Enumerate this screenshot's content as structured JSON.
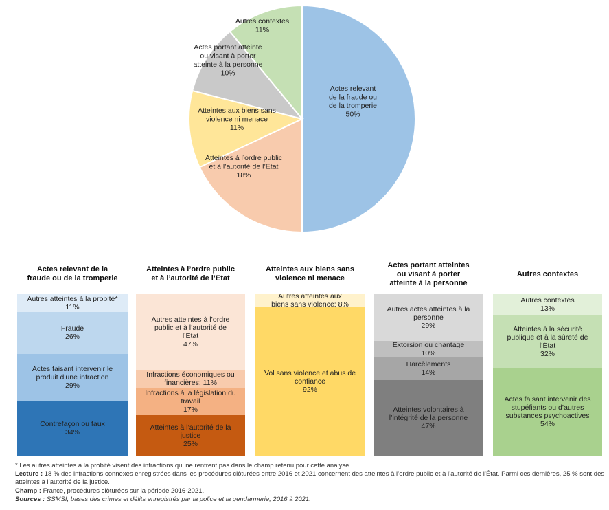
{
  "chart_data": [
    {
      "type": "pie",
      "title": "",
      "slices": [
        {
          "label": "Actes relevant de la fraude ou de la tromperie",
          "lines": [
            "Actes relevant",
            "de la fraude ou",
            "de la tromperie",
            "50%"
          ],
          "value": 50,
          "color": "#9dc3e6"
        },
        {
          "label": "Atteintes à l’ordre public et à l’autorité de l’Etat",
          "lines": [
            "Atteintes à l’ordre public",
            "et à l’autorité de l’Etat",
            "18%"
          ],
          "value": 18,
          "color": "#f8cbad"
        },
        {
          "label": "Atteintes aux biens sans violence ni menace",
          "lines": [
            "Atteintes aux biens sans",
            "violence ni menace",
            "11%"
          ],
          "value": 11,
          "color": "#ffe699"
        },
        {
          "label": "Actes portant atteinte ou visant à porter atteinte à la personne",
          "lines": [
            "Actes portant atteinte",
            "ou visant à porter",
            "atteinte à la personne",
            "10%"
          ],
          "value": 10,
          "color": "#c9c9c9"
        },
        {
          "label": "Autres contextes",
          "lines": [
            "Autres contextes",
            "11%"
          ],
          "value": 11,
          "color": "#c5e0b4"
        }
      ],
      "start": "12 o'clock",
      "direction": "clockwise"
    },
    {
      "type": "bar",
      "stacked": true,
      "normalized": "100%",
      "columns": [
        {
          "title": [
            "Actes relevant de la",
            "fraude ou de la tromperie"
          ],
          "segments": [
            {
              "lines": [
                "Autres atteintes à la probité*",
                "11%"
              ],
              "value": 11,
              "color": "#deebf7"
            },
            {
              "lines": [
                "Fraude",
                "26%"
              ],
              "value": 26,
              "color": "#bdd7ee"
            },
            {
              "lines": [
                "Actes faisant intervenir le",
                "produit d'une infraction",
                "29%"
              ],
              "value": 29,
              "color": "#9dc3e6"
            },
            {
              "lines": [
                "Contrefaçon ou faux",
                "34%"
              ],
              "value": 34,
              "color": "#2e75b6"
            }
          ]
        },
        {
          "title": [
            "Atteintes à l’ordre public",
            "et à l’autorité de l’Etat"
          ],
          "segments": [
            {
              "lines": [
                "Autres atteintes à l’ordre",
                "public et à l’autorité de",
                "l’Etat",
                "47%"
              ],
              "value": 47,
              "color": "#fbe5d6"
            },
            {
              "lines": [
                "Infractions économiques ou",
                "financières; 11%"
              ],
              "value": 11,
              "color": "#f8cbad"
            },
            {
              "lines": [
                "Infractions à la législation du",
                "travail",
                "17%"
              ],
              "value": 17,
              "color": "#f4b183"
            },
            {
              "lines": [
                "Atteintes à l’autorité de la",
                "justice",
                "25%"
              ],
              "value": 25,
              "color": "#c55a11"
            }
          ]
        },
        {
          "title": [
            "Atteintes aux biens sans",
            "violence ni menace"
          ],
          "segments": [
            {
              "lines": [
                "Autres atteintes aux",
                "biens sans violence; 8%"
              ],
              "value": 8,
              "color": "#fff2cc"
            },
            {
              "lines": [
                "Vol sans violence et abus de",
                "confiance",
                "92%"
              ],
              "value": 92,
              "color": "#ffd966"
            }
          ]
        },
        {
          "title": [
            "Actes portant atteintes",
            "ou visant à porter",
            "atteinte à la personne"
          ],
          "segments": [
            {
              "lines": [
                "Autres actes atteintes à la",
                "personne",
                "29%"
              ],
              "value": 29,
              "color": "#d9d9d9"
            },
            {
              "lines": [
                "Extorsion ou chantage",
                "10%"
              ],
              "value": 10,
              "color": "#bfbfbf"
            },
            {
              "lines": [
                "Harcèlements",
                "14%"
              ],
              "value": 14,
              "color": "#a6a6a6"
            },
            {
              "lines": [
                "Atteintes volontaires à",
                "l’intégrité de la personne",
                "47%"
              ],
              "value": 47,
              "color": "#7f7f7f"
            }
          ]
        },
        {
          "title": [
            "Autres contextes"
          ],
          "segments": [
            {
              "lines": [
                "Autres contextes",
                "13%"
              ],
              "value": 13,
              "color": "#e2f0d9"
            },
            {
              "lines": [
                "Atteintes à la sécurité",
                "publique et à la sûreté de",
                "l’État",
                "32%"
              ],
              "value": 32,
              "color": "#c5e0b4"
            },
            {
              "lines": [
                "Actes faisant intervenir des",
                "stupéfiants ou d’autres",
                "substances psychoactives",
                "54%"
              ],
              "value": 54,
              "color": "#a9d18e"
            }
          ]
        }
      ]
    }
  ],
  "footnotes": {
    "asterisk": "* Les autres atteintes à la probité visent des infractions qui ne rentrent pas dans le champ retenu pour cette analyse.",
    "lecture_label": "Lecture :",
    "lecture_text": " 18 % des infractions connexes enregistrées dans les procédures clôturées entre 2016 et 2021 concernent des atteintes à l’ordre public et à l’autorité de l’État. Parmi ces dernières, 25 % sont des atteintes à l’autorité de la justice.",
    "champ_label": "Champ :",
    "champ_text": " France, procédures clôturées sur la période 2016-2021.",
    "sources_label": "Sources :",
    "sources_text": " SSMSI, bases des crimes et délits enregistrés par la police et la gendarmerie, 2016 à 2021."
  }
}
